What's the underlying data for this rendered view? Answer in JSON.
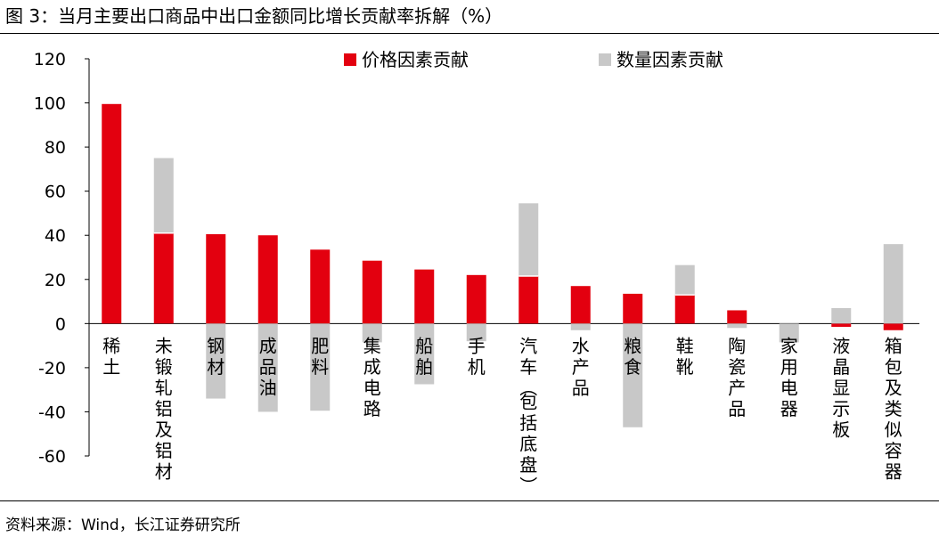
{
  "figure": {
    "title": "图 3：当月主要出口商品中出口金额同比增长贡献率拆解（%）",
    "source": "资料来源：Wind，长江证券研究所"
  },
  "colors": {
    "price": "#e3000f",
    "quantity": "#c8c8c8",
    "axis": "#000000"
  },
  "chart_data": {
    "type": "bar",
    "stacked": true,
    "categories": [
      "稀土",
      "未锻轧铝及铝材",
      "钢材",
      "成品油",
      "肥料",
      "集成电路",
      "船舶",
      "手机",
      "汽车（包括底盘）",
      "水产品",
      "粮食",
      "鞋靴",
      "陶瓷产品",
      "家用电器",
      "液晶显示板",
      "箱包及类似容器"
    ],
    "series": [
      {
        "name": "价格因素贡献",
        "color": "#e3000f",
        "values": [
          99.5,
          41,
          40.5,
          40,
          33.5,
          28.5,
          24.5,
          22,
          21.5,
          17,
          13.5,
          13,
          6,
          0,
          -1.5,
          -3
        ]
      },
      {
        "name": "数量因素贡献",
        "color": "#c8c8c8",
        "values": [
          0,
          34,
          -34,
          -40,
          -39.5,
          -8.5,
          -27.5,
          -8,
          33,
          -3,
          -47,
          13.5,
          -2,
          -8.5,
          7,
          36
        ]
      }
    ],
    "ylim": [
      -60,
      120
    ],
    "yticks": [
      120,
      100,
      80,
      60,
      40,
      20,
      0,
      -20,
      -40,
      -60
    ],
    "xlabel": "",
    "ylabel": "",
    "legend": {
      "position": "top-center"
    },
    "grid": false
  }
}
